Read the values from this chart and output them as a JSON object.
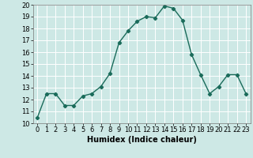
{
  "x": [
    0,
    1,
    2,
    3,
    4,
    5,
    6,
    7,
    8,
    9,
    10,
    11,
    12,
    13,
    14,
    15,
    16,
    17,
    18,
    19,
    20,
    21,
    22,
    23
  ],
  "y": [
    10.5,
    12.5,
    12.5,
    11.5,
    11.5,
    12.3,
    12.5,
    13.1,
    14.2,
    16.8,
    17.8,
    18.6,
    19.0,
    18.9,
    19.9,
    19.7,
    18.7,
    15.8,
    14.1,
    12.5,
    13.1,
    14.1,
    14.1,
    12.5
  ],
  "line_color": "#1a6b5a",
  "marker": "D",
  "marker_size": 2.2,
  "xlabel": "Humidex (Indice chaleur)",
  "xlim": [
    -0.5,
    23.5
  ],
  "ylim": [
    10,
    20
  ],
  "yticks": [
    10,
    11,
    12,
    13,
    14,
    15,
    16,
    17,
    18,
    19,
    20
  ],
  "xticks": [
    0,
    1,
    2,
    3,
    4,
    5,
    6,
    7,
    8,
    9,
    10,
    11,
    12,
    13,
    14,
    15,
    16,
    17,
    18,
    19,
    20,
    21,
    22,
    23
  ],
  "bg_color": "#cde8e5",
  "grid_color": "#ffffff",
  "linewidth": 1.0,
  "tick_fontsize": 6.0,
  "xlabel_fontsize": 7.0
}
